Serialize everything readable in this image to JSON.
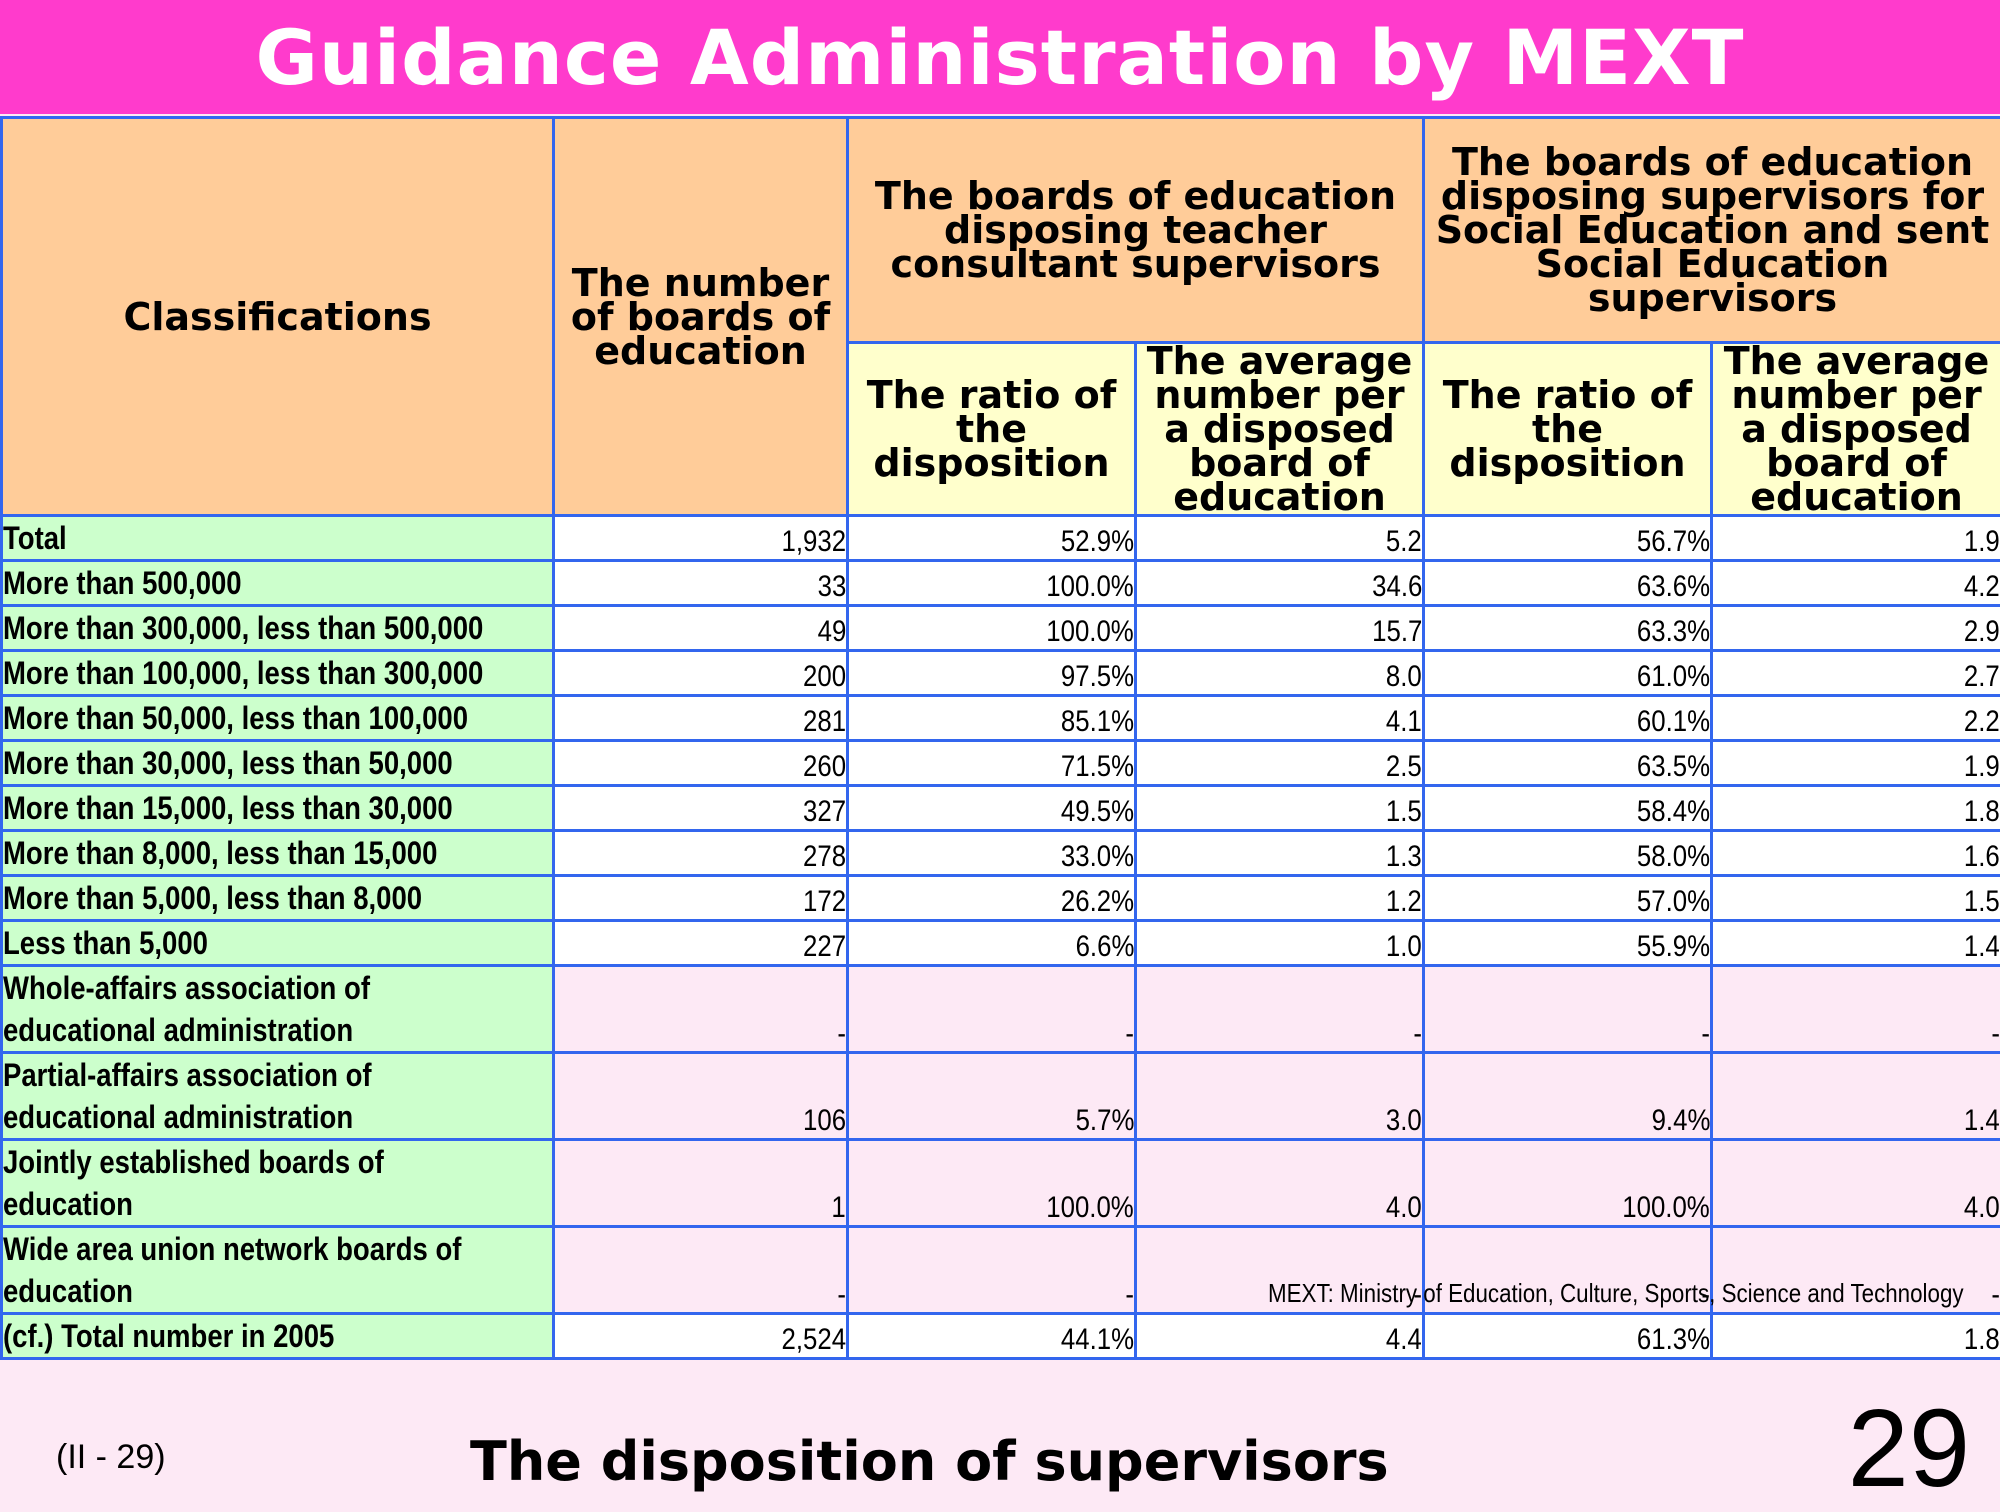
{
  "title": "Guidance Administration by MEXT",
  "headers": {
    "classifications": "Classifications",
    "number_of_boards": "The number of boards of education",
    "teacher_group": "The boards of education disposing teacher consultant supervisors",
    "social_group": "The boards of education disposing supervisors for Social Education and sent Social Education supervisors",
    "ratio": "The ratio of the disposition",
    "average": "The average number per a disposed board of education"
  },
  "rows": [
    {
      "label": "Total",
      "boards": "1,932",
      "t_ratio": "52.9%",
      "t_avg": "5.2",
      "s_ratio": "56.7%",
      "s_avg": "1.9"
    },
    {
      "label": "More than 500,000",
      "boards": "33",
      "t_ratio": "100.0%",
      "t_avg": "34.6",
      "s_ratio": "63.6%",
      "s_avg": "4.2"
    },
    {
      "label": "More than 300,000, less than 500,000",
      "boards": "49",
      "t_ratio": "100.0%",
      "t_avg": "15.7",
      "s_ratio": "63.3%",
      "s_avg": "2.9"
    },
    {
      "label": "More than 100,000, less than 300,000",
      "boards": "200",
      "t_ratio": "97.5%",
      "t_avg": "8.0",
      "s_ratio": "61.0%",
      "s_avg": "2.7"
    },
    {
      "label": "More than 50,000, less than 100,000",
      "boards": "281",
      "t_ratio": "85.1%",
      "t_avg": "4.1",
      "s_ratio": "60.1%",
      "s_avg": "2.2"
    },
    {
      "label": "More than 30,000, less than 50,000",
      "boards": "260",
      "t_ratio": "71.5%",
      "t_avg": "2.5",
      "s_ratio": "63.5%",
      "s_avg": "1.9"
    },
    {
      "label": "More than 15,000, less than 30,000",
      "boards": "327",
      "t_ratio": "49.5%",
      "t_avg": "1.5",
      "s_ratio": "58.4%",
      "s_avg": "1.8"
    },
    {
      "label": "More than 8,000, less than 15,000",
      "boards": "278",
      "t_ratio": "33.0%",
      "t_avg": "1.3",
      "s_ratio": "58.0%",
      "s_avg": "1.6"
    },
    {
      "label": "More than 5,000, less than 8,000",
      "boards": "172",
      "t_ratio": "26.2%",
      "t_avg": "1.2",
      "s_ratio": "57.0%",
      "s_avg": "1.5"
    },
    {
      "label": "Less than 5,000",
      "boards": "227",
      "t_ratio": "6.6%",
      "t_avg": "1.0",
      "s_ratio": "55.9%",
      "s_avg": "1.4"
    },
    {
      "label_1": "Whole-affairs association of",
      "label_2": "educational administration",
      "boards": "-",
      "t_ratio": "-",
      "t_avg": "-",
      "s_ratio": "-",
      "s_avg": "-"
    },
    {
      "label_1": "Partial-affairs association of",
      "label_2": "educational administration",
      "boards": "106",
      "t_ratio": "5.7%",
      "t_avg": "3.0",
      "s_ratio": "9.4%",
      "s_avg": "1.4"
    },
    {
      "label_1": "Jointly established boards of",
      "label_2": "education",
      "boards": "1",
      "t_ratio": "100.0%",
      "t_avg": "4.0",
      "s_ratio": "100.0%",
      "s_avg": "4.0"
    },
    {
      "label_1": "Wide area union network boards of",
      "label_2": "education",
      "boards": "-",
      "t_ratio": "-",
      "t_avg": "-",
      "s_ratio": "-",
      "s_avg": "-"
    },
    {
      "label": "(cf.) Total number in 2005",
      "boards": "2,524",
      "t_ratio": "44.1%",
      "t_avg": "4.4",
      "s_ratio": "61.3%",
      "s_avg": "1.8"
    }
  ],
  "note": "MEXT: Ministry of Education, Culture, Sports, Science and Technology",
  "footer": {
    "code": "(II - 29)",
    "subtitle": "The disposition of supervisors",
    "page_number": "29"
  }
}
